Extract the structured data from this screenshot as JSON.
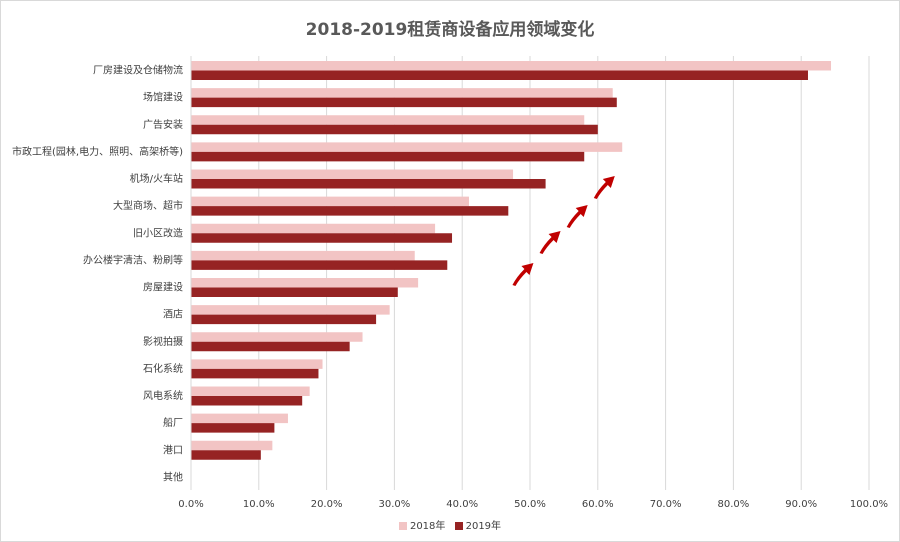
{
  "chart_data": {
    "type": "bar",
    "orientation": "horizontal",
    "title": "2018-2019租赁商设备应用领域变化",
    "categories": [
      "厂房建设及仓储物流",
      "场馆建设",
      "广告安装",
      "市政工程(园林,电力、照明、高架桥等)",
      "机场/火车站",
      "大型商场、超市",
      "旧小区改造",
      "办公楼宇清洁、粉刷等",
      "房屋建设",
      "酒店",
      "影视拍摄",
      "石化系统",
      "风电系统",
      "船厂",
      "港口",
      "其他"
    ],
    "series": [
      {
        "name": "2018年",
        "color": "#f2c4c4",
        "values": [
          0.944,
          0.622,
          0.58,
          0.636,
          0.475,
          0.41,
          0.36,
          0.33,
          0.335,
          0.293,
          0.253,
          0.194,
          0.175,
          0.143,
          0.12,
          0.0
        ]
      },
      {
        "name": "2019年",
        "color": "#962323",
        "values": [
          0.91,
          0.628,
          0.6,
          0.58,
          0.523,
          0.468,
          0.385,
          0.378,
          0.305,
          0.273,
          0.234,
          0.188,
          0.164,
          0.123,
          0.103,
          0.0
        ]
      }
    ],
    "x_ticks": [
      "0.0%",
      "10.0%",
      "20.0%",
      "30.0%",
      "40.0%",
      "50.0%",
      "60.0%",
      "70.0%",
      "80.0%",
      "90.0%",
      "100.0%"
    ],
    "xlim": [
      0,
      1.0
    ],
    "grid": true,
    "legend_position": "bottom",
    "annotations": [
      {
        "type": "arrow",
        "color": "#c00000",
        "near_x": 0.48
      },
      {
        "type": "arrow",
        "color": "#c00000",
        "near_x": 0.52
      },
      {
        "type": "arrow",
        "color": "#c00000",
        "near_x": 0.56
      },
      {
        "type": "arrow",
        "color": "#c00000",
        "near_x": 0.6
      }
    ]
  }
}
